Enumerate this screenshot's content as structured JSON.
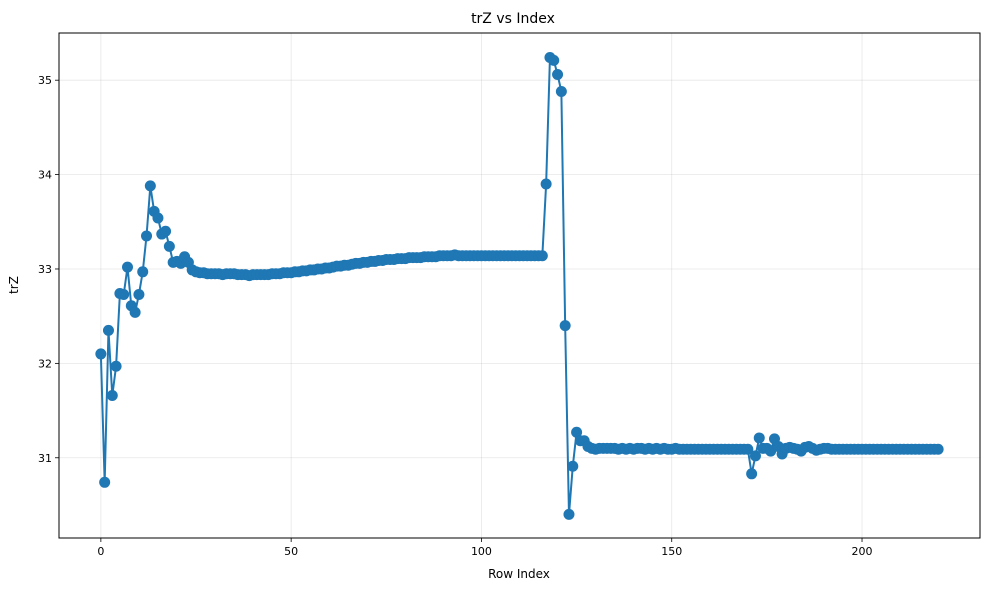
{
  "chart_data": {
    "type": "line",
    "title": "trZ vs Index",
    "xlabel": "Row Index",
    "ylabel": "trZ",
    "xlim": [
      -11,
      231
    ],
    "ylim": [
      30.15,
      35.5
    ],
    "xticks": [
      0,
      50,
      100,
      150,
      200
    ],
    "yticks": [
      31,
      32,
      33,
      34,
      35
    ],
    "grid": true,
    "line_color": "#1f77b4",
    "marker": "circle",
    "series": [
      {
        "values": [
          32.1,
          30.74,
          32.35,
          31.66,
          31.97,
          32.74,
          32.73,
          33.02,
          32.61,
          32.54,
          32.73,
          32.97,
          33.35,
          33.88,
          33.61,
          33.54,
          33.37,
          33.4,
          33.24,
          33.07,
          33.08,
          33.06,
          33.13,
          33.07,
          32.99,
          32.97,
          32.96,
          32.96,
          32.95,
          32.95,
          32.95,
          32.95,
          32.94,
          32.95,
          32.95,
          32.95,
          32.94,
          32.94,
          32.94,
          32.93,
          32.94,
          32.94,
          32.94,
          32.94,
          32.94,
          32.95,
          32.95,
          32.95,
          32.96,
          32.96,
          32.96,
          32.97,
          32.97,
          32.98,
          32.98,
          32.99,
          32.99,
          33.0,
          33.0,
          33.01,
          33.01,
          33.02,
          33.03,
          33.03,
          33.04,
          33.04,
          33.05,
          33.06,
          33.06,
          33.07,
          33.07,
          33.08,
          33.08,
          33.09,
          33.09,
          33.1,
          33.1,
          33.1,
          33.11,
          33.11,
          33.11,
          33.12,
          33.12,
          33.12,
          33.12,
          33.13,
          33.13,
          33.13,
          33.13,
          33.14,
          33.14,
          33.14,
          33.14,
          33.15,
          33.14,
          33.14,
          33.14,
          33.14,
          33.14,
          33.14,
          33.14,
          33.14,
          33.14,
          33.14,
          33.14,
          33.14,
          33.14,
          33.14,
          33.14,
          33.14,
          33.14,
          33.14,
          33.14,
          33.14,
          33.14,
          33.14,
          33.14,
          33.9,
          35.24,
          35.21,
          35.06,
          34.88,
          32.4,
          30.4,
          30.91,
          31.27,
          31.18,
          31.18,
          31.12,
          31.1,
          31.09,
          31.1,
          31.1,
          31.1,
          31.1,
          31.1,
          31.09,
          31.1,
          31.09,
          31.1,
          31.09,
          31.1,
          31.1,
          31.09,
          31.1,
          31.09,
          31.1,
          31.09,
          31.1,
          31.09,
          31.09,
          31.1,
          31.09,
          31.09,
          31.09,
          31.09,
          31.09,
          31.09,
          31.09,
          31.09,
          31.09,
          31.09,
          31.09,
          31.09,
          31.09,
          31.09,
          31.09,
          31.09,
          31.09,
          31.09,
          31.09,
          30.83,
          31.02,
          31.21,
          31.1,
          31.1,
          31.07,
          31.2,
          31.12,
          31.04,
          31.1,
          31.11,
          31.1,
          31.09,
          31.07,
          31.11,
          31.12,
          31.1,
          31.08,
          31.09,
          31.1,
          31.1,
          31.09,
          31.09,
          31.09,
          31.09,
          31.09,
          31.09,
          31.09,
          31.09,
          31.09,
          31.09,
          31.09,
          31.09,
          31.09,
          31.09,
          31.09,
          31.09,
          31.09,
          31.09,
          31.09,
          31.09,
          31.09,
          31.09,
          31.09,
          31.09,
          31.09,
          31.09,
          31.09,
          31.09,
          31.09
        ]
      }
    ]
  }
}
